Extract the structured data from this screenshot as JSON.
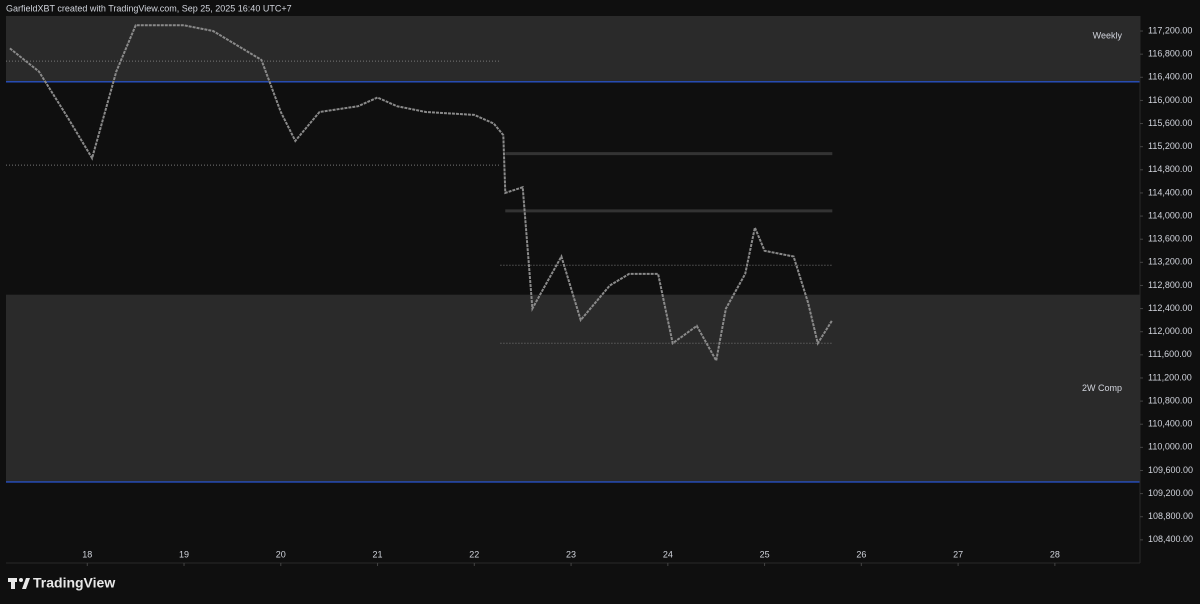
{
  "header": "GarfieldXBT created with TradingView.com, Sep 25, 2025 16:40 UTC+7",
  "footer": "TradingView",
  "chart_data": {
    "type": "line",
    "x": [
      17.2,
      17.5,
      17.8,
      18.05,
      18.3,
      18.5,
      19,
      19.3,
      19.8,
      20,
      20.15,
      20.4,
      20.8,
      21,
      21.2,
      21.5,
      22,
      22.2,
      22.3,
      22.32,
      22.5,
      22.6,
      22.7,
      22.9,
      23.1,
      23.4,
      23.6,
      23.9,
      24.05,
      24.3,
      24.5,
      24.6,
      24.8,
      24.9,
      25,
      25.3,
      25.45,
      25.55,
      25.7
    ],
    "series": [
      {
        "color": "#8a8a8a",
        "values": [
          116900,
          116500,
          115700,
          115000,
          116500,
          117300,
          117300,
          117200,
          116700,
          115800,
          115300,
          115800,
          115900,
          116050,
          115900,
          115800,
          115750,
          115600,
          115400,
          114400,
          114500,
          112400,
          112700,
          113300,
          112200,
          112800,
          113000,
          113000,
          111800,
          112100,
          111500,
          112400,
          113000,
          113800,
          113400,
          113300,
          112500,
          111800,
          112200
        ]
      }
    ],
    "zones": [
      {
        "label": "Weekly",
        "from": 116320,
        "to": 117460,
        "color": "#2a2a2a",
        "edge": "#2962ff"
      },
      {
        "label": "2W Comp",
        "from": 109400,
        "to": 112640,
        "color": "#2a2a2a",
        "edge": "#2962ff"
      }
    ],
    "dotted_levels": [
      {
        "value": 116680,
        "x": [
          17.16,
          22.27
        ]
      },
      {
        "value": 114880,
        "x": [
          17.16,
          22.27
        ]
      },
      {
        "value": 113150,
        "x": [
          22.27,
          25.7
        ]
      },
      {
        "value": 111800,
        "x": [
          22.27,
          25.7
        ]
      }
    ],
    "bar_levels": [
      {
        "value": 115080,
        "x": [
          22.32,
          25.7
        ]
      },
      {
        "value": 114090,
        "x": [
          22.32,
          25.7
        ]
      }
    ],
    "xlim": [
      17.16,
      28.88
    ],
    "xticks": [
      18,
      19,
      20,
      21,
      22,
      23,
      24,
      25,
      26,
      27,
      28
    ],
    "ylim": [
      108000,
      117460
    ],
    "yticks": [
      {
        "value": 108400,
        "label": "108,400.00"
      },
      {
        "value": 108800,
        "label": "108,800.00"
      },
      {
        "value": 109200,
        "label": "109,200.00"
      },
      {
        "value": 109600,
        "label": "109,600.00"
      },
      {
        "value": 110000,
        "label": "110,000.00"
      },
      {
        "value": 110400,
        "label": "110,400.00"
      },
      {
        "value": 110800,
        "label": "110,800.00"
      },
      {
        "value": 111200,
        "label": "111,200.00"
      },
      {
        "value": 111600,
        "label": "111,600.00"
      },
      {
        "value": 112000,
        "label": "112,000.00"
      },
      {
        "value": 112400,
        "label": "112,400.00"
      },
      {
        "value": 112800,
        "label": "112,800.00"
      },
      {
        "value": 113200,
        "label": "113,200.00"
      },
      {
        "value": 113600,
        "label": "113,600.00"
      },
      {
        "value": 114000,
        "label": "114,000.00"
      },
      {
        "value": 114400,
        "label": "114,400.00"
      },
      {
        "value": 114800,
        "label": "114,800.00"
      },
      {
        "value": 115200,
        "label": "115,200.00"
      },
      {
        "value": 115600,
        "label": "115,600.00"
      },
      {
        "value": 116000,
        "label": "116,000.00"
      },
      {
        "value": 116400,
        "label": "116,400.00"
      },
      {
        "value": 116800,
        "label": "116,800.00"
      },
      {
        "value": 117200,
        "label": "117,200.00"
      }
    ]
  }
}
